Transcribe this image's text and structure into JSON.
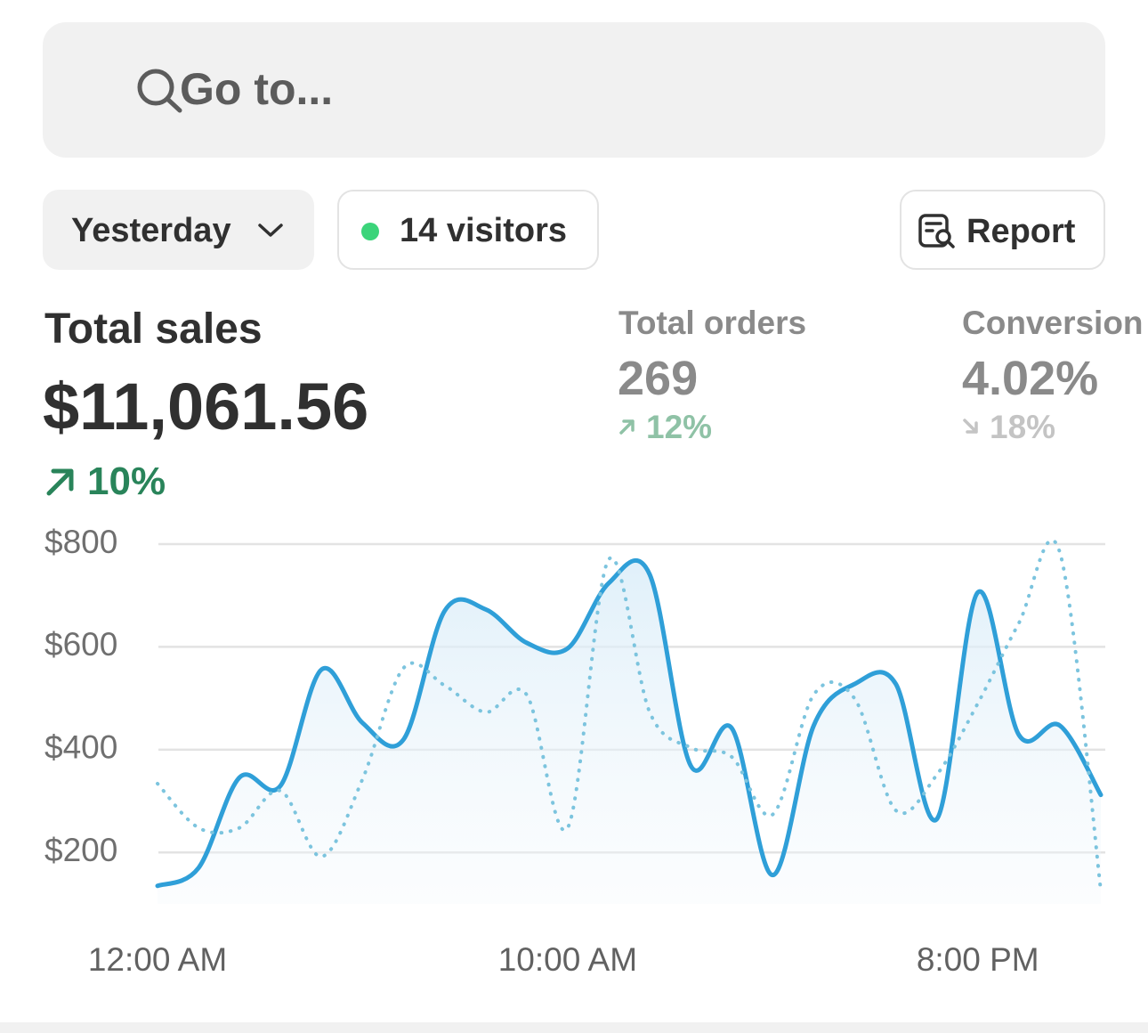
{
  "search": {
    "placeholder": "Go to..."
  },
  "toolbar": {
    "date_range": "Yesterday",
    "visitors": "14 visitors",
    "report": "Report"
  },
  "metrics": [
    {
      "label": "Total sales",
      "value": "$11,061.56",
      "change": "10%"
    },
    {
      "label": "Total orders",
      "value": "269",
      "change": "12%"
    },
    {
      "label": "Conversion",
      "value": "4.02%",
      "change": "18%"
    }
  ],
  "chart_data": {
    "type": "line",
    "categories": [
      "12:00 AM",
      null,
      null,
      null,
      null,
      null,
      null,
      null,
      null,
      null,
      "10:00 AM",
      null,
      null,
      null,
      null,
      null,
      null,
      null,
      null,
      null,
      "8:00 PM",
      null,
      null,
      null
    ],
    "series": [
      {
        "color": "#2f9fd8",
        "style": "solid",
        "area": true,
        "values": [
          135,
          170,
          346,
          330,
          556,
          452,
          420,
          670,
          673,
          608,
          597,
          724,
          741,
          369,
          442,
          156,
          447,
          528,
          528,
          265,
          706,
          429,
          447,
          312
        ]
      },
      {
        "color": "#7cc4de",
        "style": "dotted",
        "values": [
          334,
          248,
          248,
          320,
          192,
          343,
          559,
          525,
          473,
          507,
          248,
          770,
          473,
          404,
          386,
          274,
          507,
          499,
          282,
          351,
          490,
          646,
          784,
          126
        ]
      }
    ],
    "ylim": [
      100,
      800
    ],
    "yticks": [
      {
        "value": 200,
        "label": "$200"
      },
      {
        "value": 400,
        "label": "$400"
      },
      {
        "value": 600,
        "label": "$600"
      },
      {
        "value": 800,
        "label": "$800"
      }
    ],
    "grid": true
  }
}
